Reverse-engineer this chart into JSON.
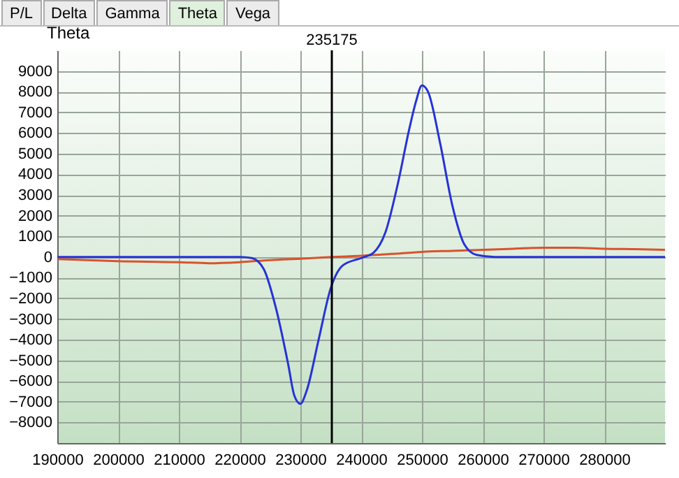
{
  "chart_data": {
    "type": "line",
    "ylabel": "Theta",
    "annotations": [
      "P/L",
      "Delta",
      "Gamma",
      "Theta",
      "Vega"
    ],
    "xlim": [
      190000,
      290000
    ],
    "xticks": [
      190000,
      200000,
      210000,
      220000,
      230000,
      240000,
      250000,
      260000,
      270000,
      280000
    ],
    "ylim": [
      -9000,
      10000
    ],
    "yticks": [
      -8000,
      -7000,
      -6000,
      -5000,
      -4000,
      -3000,
      -2000,
      -1000,
      0,
      1000,
      2000,
      3000,
      4000,
      5000,
      6000,
      7000,
      8000,
      9000
    ],
    "grid": true,
    "ref_lines": [
      {
        "axis": "x",
        "value": 235175,
        "label": "235175",
        "color": "#000000"
      }
    ],
    "series": [
      {
        "color": "#d9532c",
        "x": [
          190000,
          200000,
          210000,
          215000,
          220000,
          225000,
          230000,
          235175,
          240000,
          245000,
          250000,
          255000,
          260000,
          265000,
          270000,
          275000,
          280000,
          285000,
          290000
        ],
        "values": [
          -100,
          -200,
          -250,
          -300,
          -250,
          -150,
          -80,
          0,
          60,
          150,
          250,
          300,
          350,
          400,
          450,
          450,
          400,
          380,
          350
        ]
      },
      {
        "color": "#2633d6",
        "x": [
          190000,
          200000,
          210000,
          220000,
          222000,
          224000,
          226000,
          228000,
          229000,
          230000,
          231000,
          233000,
          235000,
          237000,
          240000,
          242000,
          244000,
          246000,
          248000,
          249000,
          250000,
          251000,
          253000,
          255000,
          257000,
          259000,
          262000,
          270000,
          280000,
          290000
        ],
        "values": [
          0,
          0,
          0,
          0,
          -50,
          -600,
          -2500,
          -5200,
          -6700,
          -7100,
          -6500,
          -4000,
          -1500,
          -400,
          -50,
          200,
          1200,
          3500,
          6300,
          7500,
          8300,
          8000,
          5500,
          2500,
          600,
          100,
          0,
          0,
          0,
          0
        ]
      }
    ]
  }
}
